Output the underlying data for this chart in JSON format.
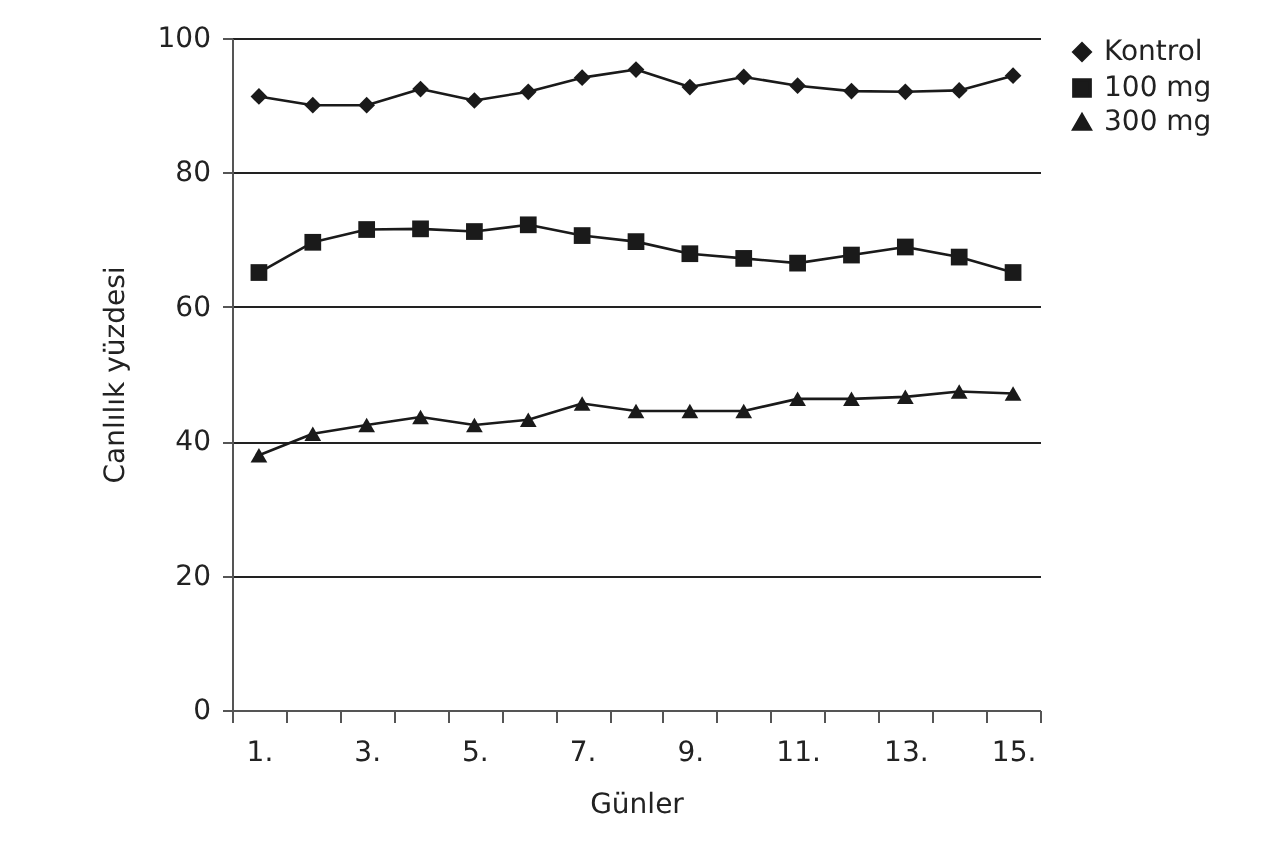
{
  "chart_data": {
    "type": "line",
    "xlabel": "Günler",
    "ylabel": "Canlılık yüzdesi",
    "categories": [
      "1.",
      null,
      "3.",
      null,
      "5.",
      null,
      "7.",
      null,
      "9.",
      null,
      "11.",
      null,
      "13.",
      null,
      "15."
    ],
    "series": [
      {
        "name": "Kontrol",
        "color": "#1a1a1a",
        "marker": "diamond",
        "values": [
          91.3,
          90.0,
          90.0,
          92.4,
          90.7,
          92.0,
          94.1,
          95.3,
          92.7,
          94.2,
          92.9,
          92.1,
          92.0,
          92.2,
          94.4
        ]
      },
      {
        "name": "100 mg",
        "color": "#1a1a1a",
        "marker": "square",
        "values": [
          65.1,
          69.6,
          71.5,
          71.6,
          71.2,
          72.2,
          70.6,
          69.7,
          67.9,
          67.2,
          66.5,
          67.7,
          68.9,
          67.4,
          65.1
        ]
      },
      {
        "name": "300 mg",
        "color": "#1a1a1a",
        "marker": "triangle",
        "values": [
          37.9,
          41.1,
          42.4,
          43.6,
          42.4,
          43.2,
          45.6,
          44.5,
          44.5,
          44.5,
          46.3,
          46.3,
          46.6,
          47.4,
          47.1
        ]
      }
    ],
    "ylim": [
      0,
      100
    ],
    "yticks": [
      0,
      20,
      40,
      60,
      80,
      100
    ],
    "grid": "y",
    "legend": "top right",
    "line_style": "solid"
  }
}
